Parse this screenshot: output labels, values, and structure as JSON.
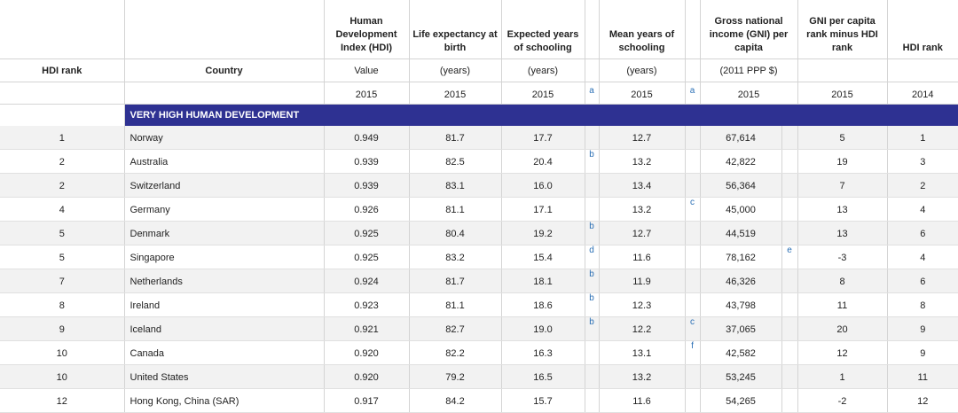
{
  "headers": {
    "hdi_rank": "HDI rank",
    "country": "Country",
    "hdi": "Human Development Index (HDI)",
    "life": "Life expectancy at birth",
    "expected": "Expected years of schooling",
    "mean": "Mean years of schooling",
    "gni": "Gross national income (GNI) per capita",
    "gni_rank": "GNI per capita rank minus HDI rank",
    "hdi_rank_2014": "HDI rank"
  },
  "units": {
    "hdi": "Value",
    "life": "(years)",
    "expected": "(years)",
    "mean": "(years)",
    "gni": "(2011 PPP $)"
  },
  "years": {
    "hdi": "2015",
    "life": "2015",
    "expected": "2015",
    "expected_note": "a",
    "mean": "2015",
    "mean_note": "a",
    "gni": "2015",
    "gni_rank": "2015",
    "hdi_rank_2014": "2014"
  },
  "section": "VERY HIGH HUMAN DEVELOPMENT",
  "rows": [
    {
      "rank": "1",
      "country": "Norway",
      "hdi": "0.949",
      "life": "81.7",
      "expected": "17.7",
      "exp_note": "",
      "mean": "12.7",
      "mean_note": "",
      "gni": "67,614",
      "gni_note": "",
      "gni_rank": "5",
      "rank2014": "1"
    },
    {
      "rank": "2",
      "country": "Australia",
      "hdi": "0.939",
      "life": "82.5",
      "expected": "20.4",
      "exp_note": "b",
      "mean": "13.2",
      "mean_note": "",
      "gni": "42,822",
      "gni_note": "",
      "gni_rank": "19",
      "rank2014": "3"
    },
    {
      "rank": "2",
      "country": "Switzerland",
      "hdi": "0.939",
      "life": "83.1",
      "expected": "16.0",
      "exp_note": "",
      "mean": "13.4",
      "mean_note": "",
      "gni": "56,364",
      "gni_note": "",
      "gni_rank": "7",
      "rank2014": "2"
    },
    {
      "rank": "4",
      "country": "Germany",
      "hdi": "0.926",
      "life": "81.1",
      "expected": "17.1",
      "exp_note": "",
      "mean": "13.2",
      "mean_note": "c",
      "gni": "45,000",
      "gni_note": "",
      "gni_rank": "13",
      "rank2014": "4"
    },
    {
      "rank": "5",
      "country": "Denmark",
      "hdi": "0.925",
      "life": "80.4",
      "expected": "19.2",
      "exp_note": "b",
      "mean": "12.7",
      "mean_note": "",
      "gni": "44,519",
      "gni_note": "",
      "gni_rank": "13",
      "rank2014": "6"
    },
    {
      "rank": "5",
      "country": "Singapore",
      "hdi": "0.925",
      "life": "83.2",
      "expected": "15.4",
      "exp_note": "d",
      "mean": "11.6",
      "mean_note": "",
      "gni": "78,162",
      "gni_note": "e",
      "gni_rank": "-3",
      "rank2014": "4"
    },
    {
      "rank": "7",
      "country": "Netherlands",
      "hdi": "0.924",
      "life": "81.7",
      "expected": "18.1",
      "exp_note": "b",
      "mean": "11.9",
      "mean_note": "",
      "gni": "46,326",
      "gni_note": "",
      "gni_rank": "8",
      "rank2014": "6"
    },
    {
      "rank": "8",
      "country": "Ireland",
      "hdi": "0.923",
      "life": "81.1",
      "expected": "18.6",
      "exp_note": "b",
      "mean": "12.3",
      "mean_note": "",
      "gni": "43,798",
      "gni_note": "",
      "gni_rank": "11",
      "rank2014": "8"
    },
    {
      "rank": "9",
      "country": "Iceland",
      "hdi": "0.921",
      "life": "82.7",
      "expected": "19.0",
      "exp_note": "b",
      "mean": "12.2",
      "mean_note": "c",
      "gni": "37,065",
      "gni_note": "",
      "gni_rank": "20",
      "rank2014": "9"
    },
    {
      "rank": "10",
      "country": "Canada",
      "hdi": "0.920",
      "life": "82.2",
      "expected": "16.3",
      "exp_note": "",
      "mean": "13.1",
      "mean_note": "f",
      "gni": "42,582",
      "gni_note": "",
      "gni_rank": "12",
      "rank2014": "9"
    },
    {
      "rank": "10",
      "country": "United States",
      "hdi": "0.920",
      "life": "79.2",
      "expected": "16.5",
      "exp_note": "",
      "mean": "13.2",
      "mean_note": "",
      "gni": "53,245",
      "gni_note": "",
      "gni_rank": "1",
      "rank2014": "11"
    },
    {
      "rank": "12",
      "country": "Hong Kong, China (SAR)",
      "hdi": "0.917",
      "life": "84.2",
      "expected": "15.7",
      "exp_note": "",
      "mean": "11.6",
      "mean_note": "",
      "gni": "54,265",
      "gni_note": "",
      "gni_rank": "-2",
      "rank2014": "12"
    }
  ]
}
